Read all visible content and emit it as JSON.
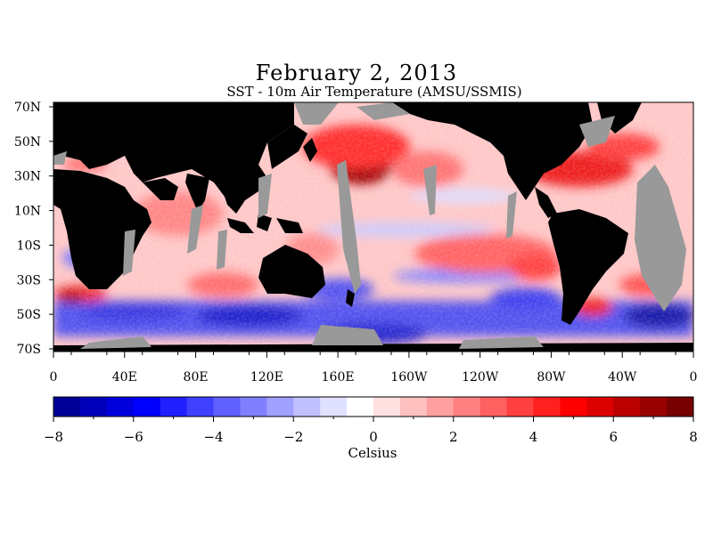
{
  "title": "February 2, 2013",
  "subtitle": "SST - 10m Air Temperature (AMSU/SSMIS)",
  "map": {
    "lat_labels": [
      "70N",
      "50N",
      "30N",
      "10N",
      "10S",
      "30S",
      "50S",
      "70S"
    ],
    "lon_labels": [
      "0",
      "40E",
      "80E",
      "120E",
      "160E",
      "160W",
      "120W",
      "80W",
      "40W",
      "0"
    ],
    "land_color": "#000000",
    "missing_color": "#999999"
  },
  "colorbar": {
    "unit": "Celsius",
    "tick_labels": [
      "-8",
      "-6",
      "-4",
      "-2",
      "0",
      "2",
      "4",
      "6",
      "8"
    ],
    "min": -8,
    "max": 8,
    "colors": [
      "#000099",
      "#0000bb",
      "#0000dd",
      "#0000ff",
      "#2020ff",
      "#4040ff",
      "#6060ff",
      "#8080ff",
      "#a0a0ff",
      "#c0c0ff",
      "#e0e0ff",
      "#ffffff",
      "#ffe0e0",
      "#ffc0c0",
      "#ffa0a0",
      "#ff8080",
      "#ff6060",
      "#ff4040",
      "#ff2020",
      "#ff0000",
      "#dd0000",
      "#bb0000",
      "#990000",
      "#770000"
    ]
  }
}
